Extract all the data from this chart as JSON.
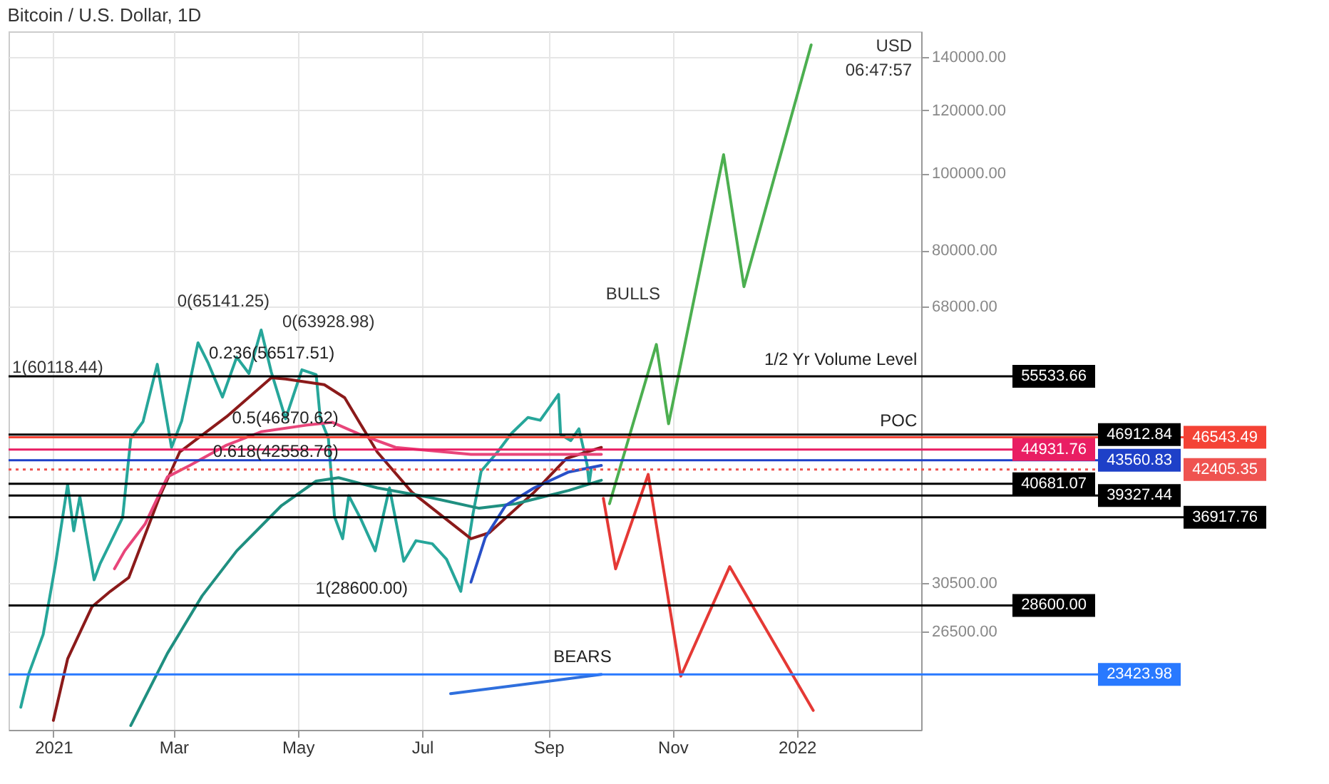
{
  "chart_data": {
    "type": "line",
    "title": "Bitcoin / U.S. Dollar, 1D",
    "xlim": [
      "2020-12-10",
      "2022-03-03"
    ],
    "xticks": [
      {
        "value": "2021-01-01",
        "label": "2021"
      },
      {
        "value": "2021-03-01",
        "label": "Mar"
      },
      {
        "value": "2021-05-01",
        "label": "May"
      },
      {
        "value": "2021-07-01",
        "label": "Jul"
      },
      {
        "value": "2021-09-01",
        "label": "Sep"
      },
      {
        "value": "2021-11-01",
        "label": "Nov"
      },
      {
        "value": "2022-01-01",
        "label": "2022"
      }
    ],
    "ylim": [
      19950,
      150800
    ],
    "yticks": [
      {
        "value": 26500,
        "label": "26500.00"
      },
      {
        "value": 30500,
        "label": "30500.00"
      },
      {
        "value": 68000,
        "label": "68000.00"
      },
      {
        "value": 80000,
        "label": "80000.00"
      },
      {
        "value": 100000,
        "label": "100000.00"
      },
      {
        "value": 120000,
        "label": "120000.00"
      },
      {
        "value": 140000,
        "label": "140000.00"
      }
    ],
    "log": "y",
    "grid": true,
    "marker": "none",
    "line_style": "solid",
    "series": [
      {
        "color": "#26a69a",
        "x": [
          "2020-12-16",
          "2020-12-20",
          "2020-12-27",
          "2021-01-02",
          "2021-01-08",
          "2021-01-11",
          "2021-01-14",
          "2021-01-21",
          "2021-01-24",
          "2021-01-29",
          "2021-02-04",
          "2021-02-08",
          "2021-02-14",
          "2021-02-21",
          "2021-02-28",
          "2021-03-05",
          "2021-03-13",
          "2021-03-18",
          "2021-03-25",
          "2021-04-01",
          "2021-04-07",
          "2021-04-13",
          "2021-04-18",
          "2021-04-25",
          "2021-05-03",
          "2021-05-10",
          "2021-05-12",
          "2021-05-16",
          "2021-05-19",
          "2021-05-23",
          "2021-05-26",
          "2021-06-01",
          "2021-06-08",
          "2021-06-15",
          "2021-06-22",
          "2021-06-28",
          "2021-07-06",
          "2021-07-13",
          "2021-07-20",
          "2021-07-26",
          "2021-07-30",
          "2021-08-07",
          "2021-08-14",
          "2021-08-22",
          "2021-08-28",
          "2021-09-06",
          "2021-09-07",
          "2021-09-12",
          "2021-09-16",
          "2021-09-20",
          "2021-09-21",
          "2021-09-22"
        ],
        "values": [
          21300,
          23500,
          26300,
          32200,
          40600,
          35500,
          39200,
          30800,
          32300,
          34300,
          36900,
          46400,
          48700,
          57500,
          45200,
          48800,
          61200,
          57700,
          52300,
          58700,
          56000,
          63500,
          56200,
          49100,
          56600,
          55800,
          49200,
          46400,
          37000,
          34700,
          39300,
          36700,
          33500,
          40200,
          32500,
          34500,
          34200,
          32700,
          29800,
          37300,
          42200,
          44600,
          47100,
          49300,
          48900,
          52700,
          46900,
          46100,
          47700,
          43000,
          40700,
          42405.35
        ]
      },
      {
        "color": "#8b1a1a",
        "x": [
          "2021-01-01",
          "2021-01-08",
          "2021-01-20",
          "2021-01-29",
          "2021-02-07",
          "2021-02-22",
          "2021-03-04",
          "2021-03-27",
          "2021-04-18",
          "2021-04-25",
          "2021-05-14",
          "2021-05-24",
          "2021-06-09",
          "2021-06-26",
          "2021-07-25",
          "2021-08-03",
          "2021-08-25",
          "2021-09-10",
          "2021-09-27"
        ],
        "values": [
          20500,
          24500,
          28500,
          29800,
          31000,
          39100,
          44600,
          49400,
          55300,
          55100,
          54200,
          52200,
          44600,
          39700,
          34700,
          35300,
          39700,
          43800,
          45200
        ]
      },
      {
        "color": "#e8457a",
        "x": [
          "2021-01-31",
          "2021-02-05",
          "2021-02-15",
          "2021-02-26",
          "2021-03-09",
          "2021-03-27",
          "2021-04-13",
          "2021-05-05",
          "2021-05-18",
          "2021-05-31",
          "2021-06-18",
          "2021-07-25",
          "2021-08-25",
          "2021-09-27"
        ],
        "values": [
          31800,
          33500,
          36200,
          41500,
          42900,
          45500,
          47300,
          48200,
          48600,
          47000,
          45200,
          44300,
          44300,
          44300
        ]
      },
      {
        "color": "#1f8f80",
        "x": [
          "2021-02-08",
          "2021-02-26",
          "2021-03-15",
          "2021-04-01",
          "2021-04-23",
          "2021-05-10",
          "2021-05-21",
          "2021-06-09",
          "2021-07-05",
          "2021-07-29",
          "2021-08-16",
          "2021-09-11",
          "2021-09-27"
        ],
        "values": [
          20200,
          24900,
          29400,
          33500,
          38200,
          41000,
          41400,
          40200,
          39100,
          37900,
          38400,
          39900,
          41100
        ]
      },
      {
        "color": "#2850c8",
        "x": [
          "2021-07-25",
          "2021-08-01",
          "2021-08-11",
          "2021-08-25",
          "2021-09-11",
          "2021-09-27"
        ],
        "values": [
          30600,
          34800,
          38200,
          40200,
          42100,
          42900
        ]
      },
      {
        "color": "#2f6fdd",
        "x": [
          "2021-07-15",
          "2021-09-27"
        ],
        "values": [
          22150,
          23423.98
        ]
      },
      {
        "color": "#4caf50",
        "x": [
          "2021-10-01",
          "2021-10-24",
          "2021-10-30",
          "2021-11-26",
          "2021-12-06",
          "2022-01-08"
        ],
        "values": [
          38400,
          60900,
          48400,
          105500,
          72000,
          145000
        ]
      },
      {
        "color": "#e53935",
        "x": [
          "2021-09-28",
          "2021-10-04",
          "2021-10-20",
          "2021-11-05",
          "2021-11-29",
          "2022-01-09"
        ],
        "values": [
          39000,
          31800,
          41800,
          23300,
          32000,
          21100
        ]
      }
    ],
    "ref_lines": [
      {
        "axis": "y",
        "value": 55533.66,
        "label": "55533.66",
        "color": "#000000"
      },
      {
        "axis": "y",
        "value": 46912.84,
        "label": "46912.84",
        "color": "#000000"
      },
      {
        "axis": "y",
        "value": 46543.49,
        "label": "46543.49",
        "color": "#f44336"
      },
      {
        "axis": "y",
        "value": 44931.76,
        "label": "44931.76",
        "color": "#e91e63"
      },
      {
        "axis": "y",
        "value": 43560.83,
        "label": "43560.83",
        "color": "#1e40c8"
      },
      {
        "axis": "y",
        "value": 42405.35,
        "label": "42405.35",
        "color": "#ef5350",
        "line_style": "dotted"
      },
      {
        "axis": "y",
        "value": 40681.07,
        "label": "40681.07",
        "color": "#000000"
      },
      {
        "axis": "y",
        "value": 39327.44,
        "label": "39327.44",
        "color": "#000000"
      },
      {
        "axis": "y",
        "value": 36917.76,
        "label": "36917.76",
        "color": "#000000"
      },
      {
        "axis": "y",
        "value": 28600.0,
        "label": "28600.00",
        "color": "#000000"
      },
      {
        "axis": "y",
        "value": 23423.98,
        "label": "23423.98",
        "color": "#2979ff"
      }
    ],
    "annotations": [
      "USD",
      "06:47:57",
      "0(65141.25)",
      "1(60118.44)",
      "0(63928.98)",
      "BULLS",
      {
        "text": "0.236(56517.51)",
        "x": "2021-05-19",
        "y": 56517.51
      },
      {
        "text": "0.5(46870.62)",
        "x": "2021-05-21",
        "y": 46870.62
      },
      {
        "text": "0.618(42558.76)",
        "x": "2021-05-21",
        "y": 42558.76
      },
      {
        "text": "1(28600.00)",
        "x": "2021-06-24",
        "y": 28600.0
      },
      {
        "text": "BEARS",
        "x": "2021-10-02",
        "y": 23500
      },
      {
        "text": "1/2 Yr Volume Level",
        "x": "2022-03-01",
        "y": 55533.66
      },
      {
        "text": "POC",
        "x": "2022-03-01",
        "y": 46543.49
      }
    ]
  }
}
